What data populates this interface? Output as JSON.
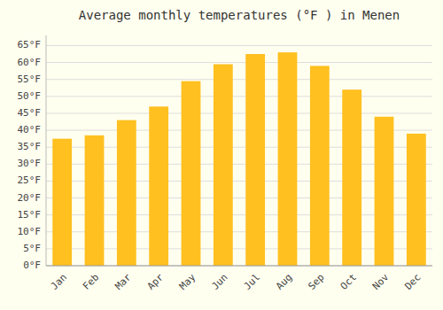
{
  "chart_data": {
    "type": "bar",
    "title": "Average monthly temperatures (°F ) in Menen",
    "categories": [
      "Jan",
      "Feb",
      "Mar",
      "Apr",
      "May",
      "Jun",
      "Jul",
      "Aug",
      "Sep",
      "Oct",
      "Nov",
      "Dec"
    ],
    "values": [
      37.5,
      38.5,
      43.0,
      47.0,
      54.5,
      59.5,
      62.5,
      63.0,
      59.0,
      52.0,
      44.0,
      39.0
    ],
    "color": "#FFC020",
    "ylim": [
      0,
      68
    ],
    "yticks": [
      {
        "value": 0,
        "label": "0°F"
      },
      {
        "value": 5,
        "label": "5°F"
      },
      {
        "value": 10,
        "label": "10°F"
      },
      {
        "value": 15,
        "label": "15°F"
      },
      {
        "value": 20,
        "label": "20°F"
      },
      {
        "value": 25,
        "label": "25°F"
      },
      {
        "value": 30,
        "label": "30°F"
      },
      {
        "value": 35,
        "label": "35°F"
      },
      {
        "value": 40,
        "label": "40°F"
      },
      {
        "value": 45,
        "label": "45°F"
      },
      {
        "value": 50,
        "label": "50°F"
      },
      {
        "value": 55,
        "label": "55°F"
      },
      {
        "value": 60,
        "label": "60°F"
      },
      {
        "value": 65,
        "label": "65°F"
      }
    ],
    "grid": true
  }
}
